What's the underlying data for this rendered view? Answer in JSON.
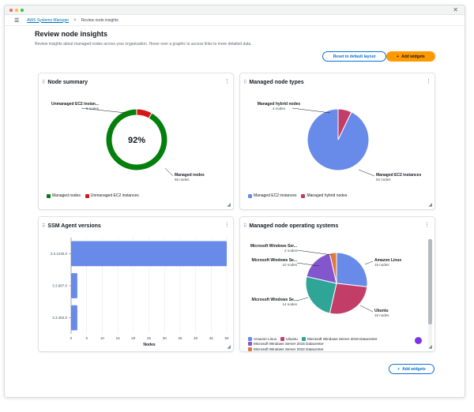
{
  "nav": {
    "breadcrumb_root": "AWS Systems Manager",
    "breadcrumb_separator": ">",
    "breadcrumb_current": "Review node insights"
  },
  "page": {
    "title": "Review node insights",
    "description": "Review insights about managed nodes across your organization. Hover over a graphic to access links to more detailed data.",
    "reset_button": "Reset to default layout",
    "add_widgets_button": "Add widgets",
    "add_widgets_bottom_button": "Add widgets"
  },
  "icons": {
    "menu": "hamburger-icon",
    "drag": "drag-handle-icon",
    "more": "kebab-menu-icon",
    "resize": "resize-handle-icon",
    "add": "plus-icon"
  },
  "colors": {
    "accent": "#ff9900",
    "link": "#0972d3",
    "managed_green": "#037f0c",
    "unmanaged_red": "#d91515",
    "blue": "#688ae8",
    "dark_red": "#c33d69",
    "teal": "#2ea597",
    "purple": "#8456ce",
    "orange": "#e07941"
  },
  "node_summary": {
    "title": "Node summary",
    "center_label": "92%",
    "unmanaged_label": "Unmanaged EC2 instan...",
    "unmanaged_sub": "5 nodes",
    "managed_label": "Managed nodes",
    "managed_sub": "56 nodes",
    "legend": [
      "Managed nodes",
      "Unmanaged EC2 instances"
    ]
  },
  "node_types": {
    "title": "Managed node types",
    "hybrid_label": "Managed hybrid nodes",
    "hybrid_sub": "4 nodes",
    "ec2_label": "Managed EC2 instances",
    "ec2_sub": "52 nodes",
    "legend": [
      "Managed EC2 instances",
      "Managed hybrid nodes"
    ]
  },
  "ssm_agent": {
    "title": "SSM Agent versions",
    "xlabel": "Nodes"
  },
  "os": {
    "title": "Managed node operating systems",
    "labels": {
      "win_ser_a": "Microsoft Windows Ser...",
      "win_ser_a_sub": "2 nodes",
      "win_ser_b": "Microsoft Windows Se...",
      "win_ser_b_sub": "10 nodes",
      "win_se_c": "Microsoft Windows Se...",
      "win_se_c_sub": "14 nodes",
      "amazon": "Amazon Linux",
      "amazon_sub": "15 nodes",
      "ubuntu": "Ubuntu",
      "ubuntu_sub": "15 nodes"
    },
    "legend": [
      "Amazon Linux",
      "Ubuntu",
      "Microsoft Windows Server 2019 Datacenter",
      "Microsoft Windows Server 2016 Datacenter",
      "Microsoft Windows Server 2022 Datacenter"
    ]
  },
  "chart_data": [
    {
      "type": "pie",
      "title": "Node summary",
      "categories": [
        "Managed nodes",
        "Unmanaged EC2 instances"
      ],
      "values": [
        56,
        5
      ],
      "colors": [
        "#037f0c",
        "#d91515"
      ],
      "donut": true
    },
    {
      "type": "pie",
      "title": "Managed node types",
      "categories": [
        "Managed EC2 instances",
        "Managed hybrid nodes"
      ],
      "values": [
        52,
        4
      ],
      "colors": [
        "#688ae8",
        "#c33d69"
      ]
    },
    {
      "type": "bar",
      "orientation": "horizontal",
      "title": "SSM Agent versions",
      "categories": [
        "3.3.1230.0",
        "3.3.987.0",
        "3.3.484.0"
      ],
      "values": [
        50,
        2,
        2
      ],
      "xlabel": "Nodes",
      "xlim": [
        0,
        50
      ],
      "xticks": [
        0,
        5,
        10,
        15,
        20,
        25,
        30,
        35,
        40,
        45,
        50
      ],
      "grid": true,
      "color": "#688ae8"
    },
    {
      "type": "pie",
      "title": "Managed node operating systems",
      "categories": [
        "Amazon Linux",
        "Ubuntu",
        "Microsoft Windows Server 2019 Datacenter",
        "Microsoft Windows Server 2016 Datacenter",
        "Microsoft Windows Server 2022 Datacenter"
      ],
      "values": [
        15,
        15,
        14,
        10,
        2
      ],
      "colors": [
        "#688ae8",
        "#c33d69",
        "#2ea597",
        "#8456ce",
        "#e07941"
      ],
      "legend": "bottom"
    }
  ]
}
